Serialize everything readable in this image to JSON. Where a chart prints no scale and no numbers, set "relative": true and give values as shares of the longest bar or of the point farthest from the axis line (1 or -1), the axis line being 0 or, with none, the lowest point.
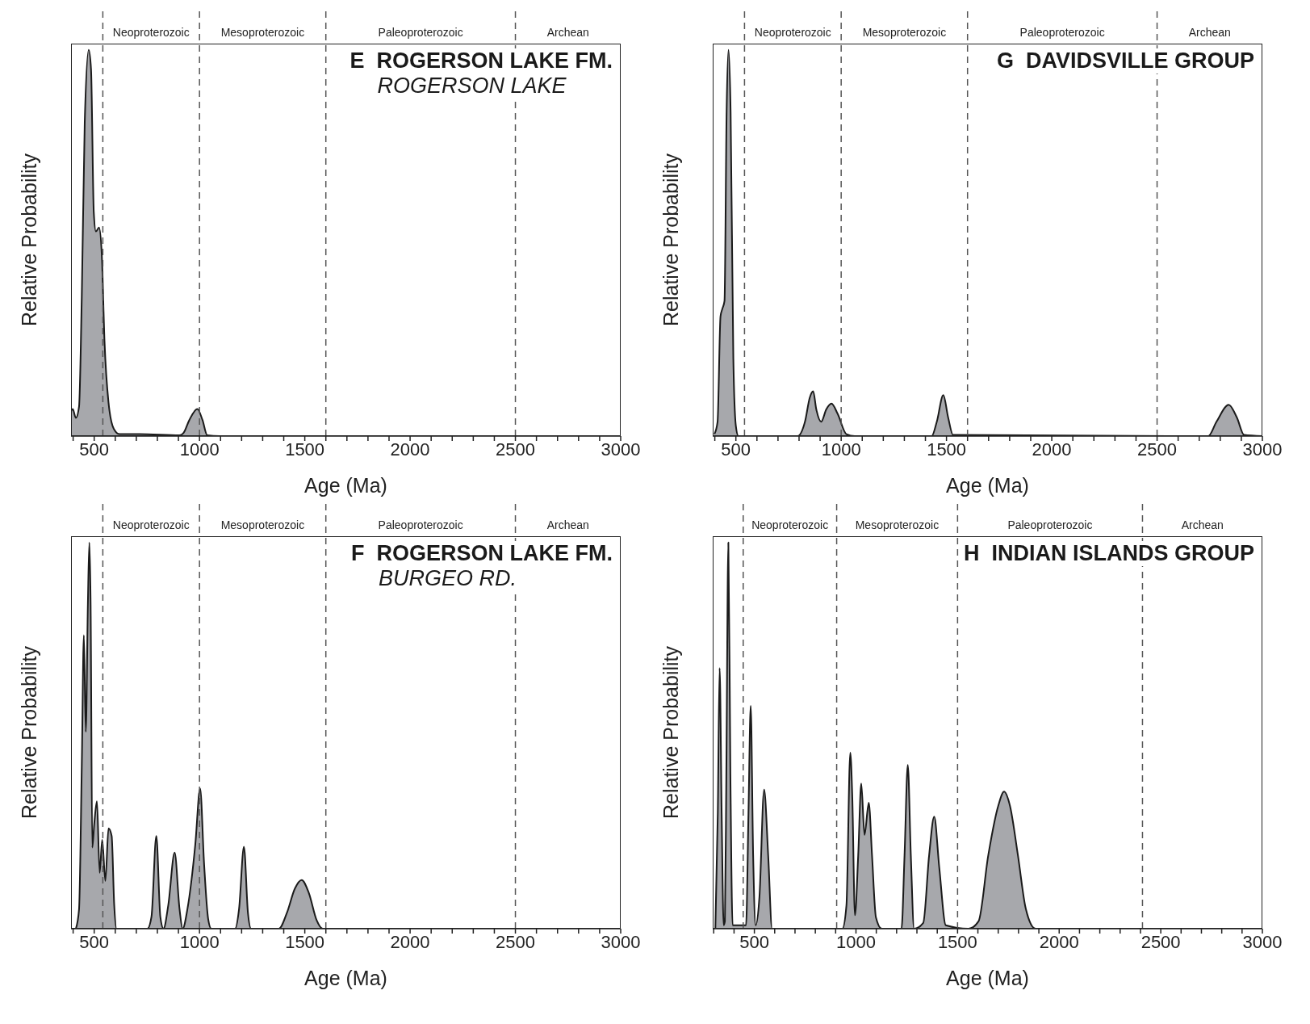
{
  "chart_data": [
    {
      "type": "area",
      "title": "E  ROGERSON LAKE FM.",
      "subtitle": "ROGERSON LAKE",
      "xlabel": "Age (Ma)",
      "ylabel": "Relative Probability",
      "relative": true,
      "color": "#a7a8ac",
      "tick_labels": "x",
      "xlim": [
        390,
        3000
      ],
      "xticks": [
        {
          "value": 400,
          "label": null
        },
        500,
        {
          "value": 600,
          "label": null
        },
        {
          "value": 700,
          "label": null
        },
        {
          "value": 800,
          "label": null
        },
        {
          "value": 900,
          "label": null
        },
        1000,
        {
          "value": 1100,
          "label": null
        },
        {
          "value": 1200,
          "label": null
        },
        {
          "value": 1300,
          "label": null
        },
        {
          "value": 1400,
          "label": null
        },
        1500,
        {
          "value": 1600,
          "label": null
        },
        {
          "value": 1700,
          "label": null
        },
        {
          "value": 1800,
          "label": null
        },
        {
          "value": 1900,
          "label": null
        },
        2000,
        {
          "value": 2100,
          "label": null
        },
        {
          "value": 2200,
          "label": null
        },
        {
          "value": 2300,
          "label": null
        },
        {
          "value": 2400,
          "label": null
        },
        2500,
        {
          "value": 2600,
          "label": null
        },
        {
          "value": 2700,
          "label": null
        },
        {
          "value": 2800,
          "label": null
        },
        {
          "value": 2900,
          "label": null
        },
        3000
      ],
      "x": [
        390,
        398,
        413,
        428,
        441,
        455,
        474,
        485,
        498,
        508,
        523,
        536,
        549,
        568,
        593,
        621,
        716,
        905,
        924,
        952,
        990,
        1014,
        1037,
        1094,
        3000
      ],
      "values": [
        0.064,
        0.07,
        0.047,
        0.076,
        0.36,
        0.81,
        1,
        0.95,
        0.58,
        0.53,
        0.54,
        0.47,
        0.245,
        0.087,
        0.019,
        0.005,
        0.005,
        0.002,
        0.008,
        0.042,
        0.07,
        0.042,
        0.002,
        0,
        0
      ],
      "ref_lines": [
        {
          "axis": "x",
          "value": 541,
          "line_style": "dashed",
          "color": "#555555"
        },
        {
          "axis": "x",
          "value": 1000,
          "line_style": "dashed",
          "color": "#555555"
        },
        {
          "axis": "x",
          "value": 1600,
          "line_style": "dashed",
          "color": "#555555"
        },
        {
          "axis": "x",
          "value": 2500,
          "line_style": "dashed",
          "color": "#555555"
        }
      ],
      "annotations": [
        "Neoproterozoic",
        "Mesoproterozoic",
        "Paleoproterozoic",
        "Archean"
      ]
    },
    {
      "type": "area",
      "title": "G  DAVIDSVILLE GROUP",
      "xlabel": "Age (Ma)",
      "ylabel": "Relative Probability",
      "relative": true,
      "color": "#a7a8ac",
      "tick_labels": "x",
      "xlim": [
        390,
        3000
      ],
      "xticks": [
        {
          "value": 400,
          "label": null
        },
        500,
        {
          "value": 600,
          "label": null
        },
        {
          "value": 700,
          "label": null
        },
        {
          "value": 800,
          "label": null
        },
        {
          "value": 900,
          "label": null
        },
        1000,
        {
          "value": 1100,
          "label": null
        },
        {
          "value": 1200,
          "label": null
        },
        {
          "value": 1300,
          "label": null
        },
        {
          "value": 1400,
          "label": null
        },
        1500,
        {
          "value": 1600,
          "label": null
        },
        {
          "value": 1700,
          "label": null
        },
        {
          "value": 1800,
          "label": null
        },
        {
          "value": 1900,
          "label": null
        },
        2000,
        {
          "value": 2100,
          "label": null
        },
        {
          "value": 2200,
          "label": null
        },
        {
          "value": 2300,
          "label": null
        },
        {
          "value": 2400,
          "label": null
        },
        2500,
        {
          "value": 2600,
          "label": null
        },
        {
          "value": 2700,
          "label": null
        },
        {
          "value": 2800,
          "label": null
        },
        {
          "value": 2900,
          "label": null
        },
        3000
      ],
      "x": [
        398,
        413,
        427,
        436,
        446,
        456,
        465,
        475,
        488,
        500,
        512,
        793,
        828,
        851,
        867,
        882,
        905,
        929,
        954,
        983,
        1025,
        1064,
        1430,
        1454,
        1485,
        1508,
        1531,
        2743,
        2782,
        2840,
        2879,
        2913,
        3000
      ],
      "values": [
        0.005,
        0.037,
        0.31,
        0.33,
        0.35,
        0.84,
        1,
        0.84,
        0.2,
        0.026,
        0,
        0,
        0.037,
        0.1,
        0.116,
        0.069,
        0.037,
        0.069,
        0.084,
        0.058,
        0.005,
        0,
        0,
        0.037,
        0.106,
        0.048,
        0.003,
        0,
        0.037,
        0.081,
        0.048,
        0.003,
        0
      ],
      "ref_lines": [
        {
          "axis": "x",
          "value": 541,
          "line_style": "dashed",
          "color": "#555555"
        },
        {
          "axis": "x",
          "value": 1000,
          "line_style": "dashed",
          "color": "#555555"
        },
        {
          "axis": "x",
          "value": 1600,
          "line_style": "dashed",
          "color": "#555555"
        },
        {
          "axis": "x",
          "value": 2500,
          "line_style": "dashed",
          "color": "#555555"
        }
      ],
      "annotations": [
        "Neoproterozoic",
        "Mesoproterozoic",
        "Paleoproterozoic",
        "Archean"
      ]
    },
    {
      "type": "area",
      "title": "F  ROGERSON LAKE FM.",
      "subtitle": "BURGEO RD.",
      "xlabel": "Age (Ma)",
      "ylabel": "Relative Probability",
      "relative": true,
      "color": "#a7a8ac",
      "tick_labels": "x",
      "xlim": [
        390,
        3000
      ],
      "xticks": [
        {
          "value": 400,
          "label": null
        },
        500,
        {
          "value": 600,
          "label": null
        },
        {
          "value": 700,
          "label": null
        },
        {
          "value": 800,
          "label": null
        },
        {
          "value": 900,
          "label": null
        },
        1000,
        {
          "value": 1100,
          "label": null
        },
        {
          "value": 1200,
          "label": null
        },
        {
          "value": 1300,
          "label": null
        },
        {
          "value": 1400,
          "label": null
        },
        1500,
        {
          "value": 1600,
          "label": null
        },
        {
          "value": 1700,
          "label": null
        },
        {
          "value": 1800,
          "label": null
        },
        {
          "value": 1900,
          "label": null
        },
        2000,
        {
          "value": 2100,
          "label": null
        },
        {
          "value": 2200,
          "label": null
        },
        {
          "value": 2300,
          "label": null
        },
        {
          "value": 2400,
          "label": null
        },
        2500,
        {
          "value": 2600,
          "label": null
        },
        {
          "value": 2700,
          "label": null
        },
        {
          "value": 2800,
          "label": null
        },
        {
          "value": 2900,
          "label": null
        },
        3000
      ],
      "x": [
        413,
        428,
        441,
        451,
        460,
        470,
        477,
        483,
        491,
        500,
        513,
        526,
        538,
        553,
        568,
        583,
        595,
        606,
        753,
        772,
        795,
        814,
        829,
        852,
        882,
        905,
        920,
        943,
        980,
        1003,
        1022,
        1041,
        1056,
        1169,
        1188,
        1211,
        1230,
        1245,
        1377,
        1415,
        1453,
        1485,
        1519,
        1557,
        1585,
        3000
      ],
      "values": [
        0,
        0.05,
        0.42,
        0.76,
        0.51,
        0.84,
        1,
        0.84,
        0.21,
        0.27,
        0.33,
        0.145,
        0.23,
        0.124,
        0.26,
        0.24,
        0.062,
        0,
        0,
        0.031,
        0.24,
        0.031,
        0,
        0.062,
        0.197,
        0.052,
        0,
        0.052,
        0.218,
        0.363,
        0.166,
        0.026,
        0,
        0,
        0.052,
        0.212,
        0.041,
        0,
        0,
        0.041,
        0.104,
        0.126,
        0.093,
        0.021,
        0,
        0
      ],
      "ref_lines": [
        {
          "axis": "x",
          "value": 541,
          "line_style": "dashed",
          "color": "#555555"
        },
        {
          "axis": "x",
          "value": 1000,
          "line_style": "dashed",
          "color": "#555555"
        },
        {
          "axis": "x",
          "value": 1600,
          "line_style": "dashed",
          "color": "#555555"
        },
        {
          "axis": "x",
          "value": 2500,
          "line_style": "dashed",
          "color": "#555555"
        }
      ],
      "annotations": [
        "Neoproterozoic",
        "Mesoproterozoic",
        "Paleoproterozoic",
        "Archean"
      ]
    },
    {
      "type": "area",
      "title": "H  INDIAN ISLANDS GROUP",
      "xlabel": "Age (Ma)",
      "ylabel": "Relative Probability",
      "relative": true,
      "color": "#a7a8ac",
      "tick_labels": "x",
      "xlim": [
        295,
        3000
      ],
      "xticks": [
        {
          "value": 300,
          "label": null
        },
        {
          "value": 400,
          "label": null
        },
        500,
        {
          "value": 600,
          "label": null
        },
        {
          "value": 700,
          "label": null
        },
        {
          "value": 800,
          "label": null
        },
        {
          "value": 900,
          "label": null
        },
        1000,
        {
          "value": 1100,
          "label": null
        },
        {
          "value": 1200,
          "label": null
        },
        {
          "value": 1300,
          "label": null
        },
        {
          "value": 1400,
          "label": null
        },
        1500,
        {
          "value": 1600,
          "label": null
        },
        {
          "value": 1700,
          "label": null
        },
        {
          "value": 1800,
          "label": null
        },
        {
          "value": 1900,
          "label": null
        },
        2000,
        {
          "value": 2100,
          "label": null
        },
        {
          "value": 2200,
          "label": null
        },
        {
          "value": 2300,
          "label": null
        },
        {
          "value": 2400,
          "label": null
        },
        2500,
        {
          "value": 2600,
          "label": null
        },
        {
          "value": 2700,
          "label": null
        },
        {
          "value": 2800,
          "label": null
        },
        {
          "value": 2900,
          "label": null
        },
        3000
      ],
      "x": [
        308,
        320,
        329,
        339,
        349,
        355,
        362,
        372,
        382,
        393,
        459,
        471,
        482,
        494,
        506,
        525,
        548,
        568,
        587,
        933,
        953,
        972,
        982,
        995,
        1011,
        1026,
        1042,
        1063,
        1079,
        1098,
        1127,
        1224,
        1239,
        1255,
        1270,
        1286,
        1331,
        1360,
        1385,
        1410,
        1442,
        1554,
        1603,
        1651,
        1700,
        1729,
        1758,
        1797,
        1836,
        1884,
        3000
      ],
      "values": [
        0,
        0.3,
        0.675,
        0.3,
        0.009,
        0.019,
        0.4,
        1,
        0.4,
        0.009,
        0.009,
        0.3,
        0.577,
        0.19,
        0.009,
        0.083,
        0.36,
        0.19,
        0,
        0,
        0.06,
        0.456,
        0.34,
        0.035,
        0.19,
        0.376,
        0.243,
        0.326,
        0.19,
        0.03,
        0,
        0,
        0.19,
        0.424,
        0.19,
        0,
        0.015,
        0.19,
        0.29,
        0.158,
        0.009,
        0,
        0.019,
        0.19,
        0.318,
        0.355,
        0.318,
        0.19,
        0.051,
        0,
        0
      ],
      "ref_lines": [
        {
          "axis": "x",
          "value": 445,
          "line_style": "dashed",
          "color": "#555555"
        },
        {
          "axis": "x",
          "value": 905,
          "line_style": "dashed",
          "color": "#555555"
        },
        {
          "axis": "x",
          "value": 1500,
          "line_style": "dashed",
          "color": "#555555"
        },
        {
          "axis": "x",
          "value": 2410,
          "line_style": "dashed",
          "color": "#555555"
        }
      ],
      "annotations": [
        "Neoproterozoic",
        "Mesoproterozoic",
        "Paleoproterozoic",
        "Archean"
      ]
    }
  ]
}
